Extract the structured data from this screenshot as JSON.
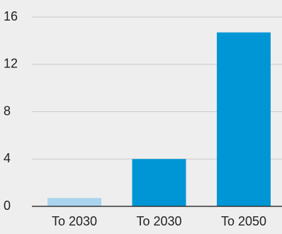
{
  "chart_data": {
    "type": "bar",
    "categories": [
      "To 2030",
      "To 2030",
      "To 2050"
    ],
    "values": [
      0.7,
      4.0,
      14.7
    ],
    "bar_colors": [
      "#a9d4ee",
      "#0096d6",
      "#0096d6"
    ],
    "ylim": [
      0,
      16
    ],
    "yticks": [
      "0",
      "4",
      "8",
      "12",
      "16"
    ],
    "ytick_values": [
      0,
      4,
      8,
      12,
      16
    ],
    "grid": true,
    "title": "",
    "xlabel": "",
    "ylabel": "",
    "background": "#eeeeee"
  }
}
